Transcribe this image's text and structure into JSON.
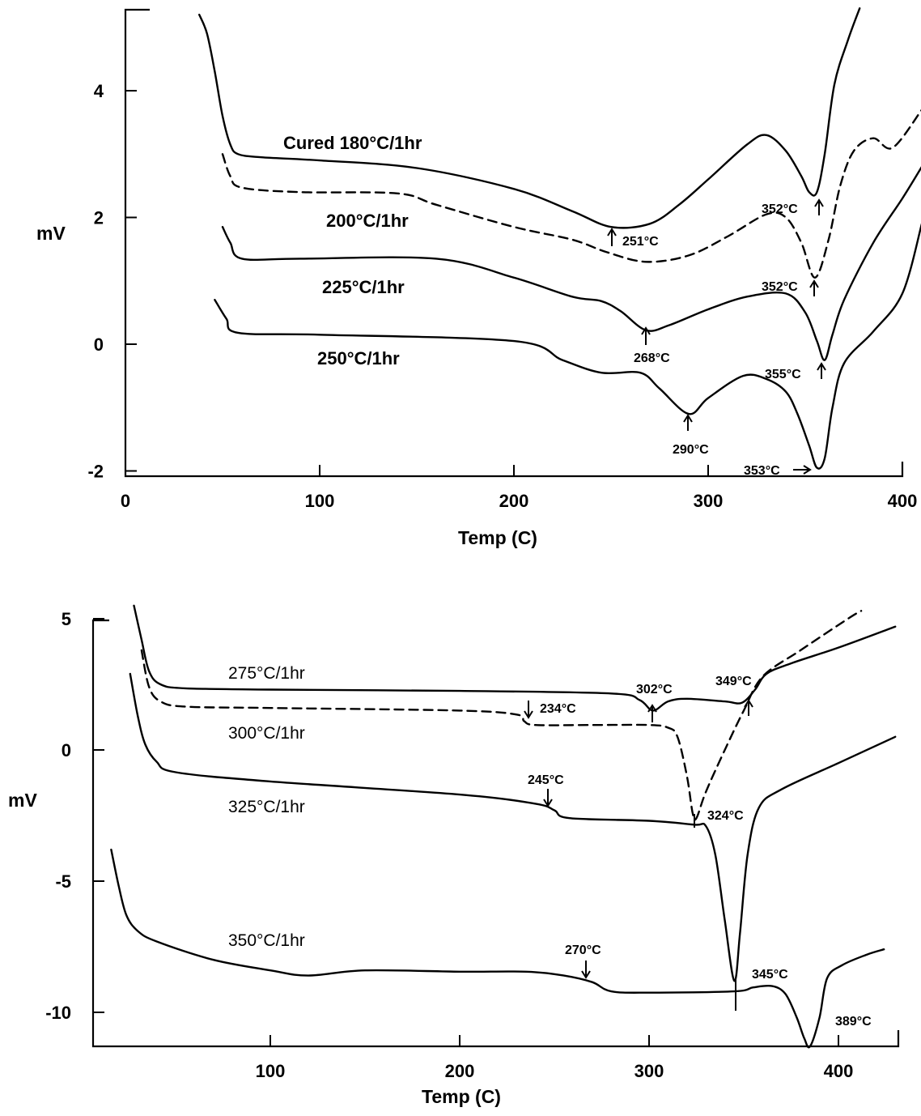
{
  "chart_data": [
    {
      "type": "line",
      "title": "",
      "xlabel": "Temp (C)",
      "ylabel": "mV",
      "xlim": [
        0,
        410
      ],
      "ylim": [
        -2.1,
        5.4
      ],
      "xticks": [
        0,
        100,
        200,
        300,
        400
      ],
      "yticks": [
        -2,
        0,
        2,
        4
      ],
      "grid": false,
      "series": [
        {
          "name": "Cured 180°C/1hr",
          "style": "solid",
          "points": [
            [
              38,
              5.2
            ],
            [
              42,
              4.9
            ],
            [
              46,
              4.3
            ],
            [
              50,
              3.6
            ],
            [
              54,
              3.15
            ],
            [
              58,
              3.0
            ],
            [
              70,
              2.95
            ],
            [
              100,
              2.9
            ],
            [
              150,
              2.78
            ],
            [
              200,
              2.45
            ],
            [
              230,
              2.1
            ],
            [
              250,
              1.85
            ],
            [
              270,
              1.9
            ],
            [
              285,
              2.2
            ],
            [
              300,
              2.6
            ],
            [
              320,
              3.15
            ],
            [
              330,
              3.3
            ],
            [
              340,
              3.05
            ],
            [
              348,
              2.65
            ],
            [
              352,
              2.4
            ],
            [
              356,
              2.4
            ],
            [
              360,
              3.0
            ],
            [
              365,
              4.1
            ],
            [
              372,
              4.8
            ],
            [
              378,
              5.3
            ]
          ]
        },
        {
          "name": "200°C/1hr",
          "style": "dashed",
          "points": [
            [
              50,
              3.0
            ],
            [
              54,
              2.65
            ],
            [
              60,
              2.47
            ],
            [
              90,
              2.4
            ],
            [
              140,
              2.38
            ],
            [
              160,
              2.2
            ],
            [
              200,
              1.85
            ],
            [
              230,
              1.65
            ],
            [
              248,
              1.45
            ],
            [
              268,
              1.3
            ],
            [
              290,
              1.4
            ],
            [
              310,
              1.7
            ],
            [
              330,
              2.05
            ],
            [
              340,
              2.0
            ],
            [
              348,
              1.6
            ],
            [
              355,
              1.05
            ],
            [
              362,
              1.65
            ],
            [
              368,
              2.5
            ],
            [
              375,
              3.05
            ],
            [
              385,
              3.25
            ],
            [
              395,
              3.1
            ],
            [
              410,
              3.7
            ]
          ]
        },
        {
          "name": "225°C/1hr",
          "style": "solid",
          "points": [
            [
              50,
              1.85
            ],
            [
              54,
              1.6
            ],
            [
              60,
              1.35
            ],
            [
              90,
              1.35
            ],
            [
              160,
              1.35
            ],
            [
              200,
              1.05
            ],
            [
              230,
              0.75
            ],
            [
              245,
              0.68
            ],
            [
              255,
              0.52
            ],
            [
              268,
              0.22
            ],
            [
              280,
              0.3
            ],
            [
              300,
              0.55
            ],
            [
              320,
              0.75
            ],
            [
              340,
              0.8
            ],
            [
              350,
              0.5
            ],
            [
              356,
              0.05
            ],
            [
              360,
              -0.25
            ],
            [
              364,
              0.15
            ],
            [
              370,
              0.7
            ],
            [
              385,
              1.6
            ],
            [
              400,
              2.3
            ],
            [
              410,
              2.8
            ]
          ]
        },
        {
          "name": "250°C/1hr",
          "style": "solid",
          "points": [
            [
              46,
              0.7
            ],
            [
              52,
              0.4
            ],
            [
              58,
              0.18
            ],
            [
              100,
              0.15
            ],
            [
              200,
              0.05
            ],
            [
              225,
              -0.25
            ],
            [
              245,
              -0.45
            ],
            [
              265,
              -0.45
            ],
            [
              275,
              -0.7
            ],
            [
              290,
              -1.1
            ],
            [
              300,
              -0.85
            ],
            [
              318,
              -0.5
            ],
            [
              330,
              -0.55
            ],
            [
              340,
              -0.75
            ],
            [
              346,
              -1.1
            ],
            [
              352,
              -1.6
            ],
            [
              356,
              -1.95
            ],
            [
              360,
              -1.8
            ],
            [
              364,
              -1.0
            ],
            [
              370,
              -0.3
            ],
            [
              385,
              0.2
            ],
            [
              400,
              0.8
            ],
            [
              410,
              1.9
            ]
          ]
        }
      ],
      "annotations": [
        {
          "text": "251°C",
          "x": 251,
          "y": 1.85
        },
        {
          "text": "352°C",
          "x": 352,
          "y": 2.4
        },
        {
          "text": "268°C",
          "x": 268,
          "y": 0.22
        },
        {
          "text": "352°C",
          "x": 355,
          "y": 1.05
        },
        {
          "text": "355°C",
          "x": 360,
          "y": -0.25
        },
        {
          "text": "290°C",
          "x": 290,
          "y": -1.1
        },
        {
          "text": "353°C",
          "x": 356,
          "y": -1.95
        }
      ]
    },
    {
      "type": "line",
      "title": "",
      "xlabel": "Temp (C)",
      "ylabel": "mV",
      "xlim": [
        0,
        430
      ],
      "ylim": [
        -11.3,
        5.6
      ],
      "xticks": [
        100,
        200,
        300,
        400
      ],
      "yticks": [
        -10,
        -5,
        0,
        5
      ],
      "grid": false,
      "series": [
        {
          "name": "275°C/1hr",
          "style": "solid",
          "points": [
            [
              28,
              5.5
            ],
            [
              32,
              4.2
            ],
            [
              36,
              3.0
            ],
            [
              42,
              2.5
            ],
            [
              55,
              2.35
            ],
            [
              100,
              2.3
            ],
            [
              200,
              2.25
            ],
            [
              280,
              2.15
            ],
            [
              295,
              1.9
            ],
            [
              302,
              1.5
            ],
            [
              310,
              1.85
            ],
            [
              320,
              1.95
            ],
            [
              340,
              1.85
            ],
            [
              349,
              1.8
            ],
            [
              356,
              2.3
            ],
            [
              362,
              2.9
            ],
            [
              375,
              3.3
            ],
            [
              400,
              3.9
            ],
            [
              430,
              4.7
            ]
          ]
        },
        {
          "name": "300°C/1hr",
          "style": "dashed",
          "points": [
            [
              32,
              3.8
            ],
            [
              36,
              2.4
            ],
            [
              42,
              1.85
            ],
            [
              55,
              1.65
            ],
            [
              100,
              1.6
            ],
            [
              200,
              1.5
            ],
            [
              230,
              1.35
            ],
            [
              234,
              1.1
            ],
            [
              240,
              0.95
            ],
            [
              270,
              0.95
            ],
            [
              300,
              0.95
            ],
            [
              310,
              0.85
            ],
            [
              315,
              0.5
            ],
            [
              320,
              -1.0
            ],
            [
              323,
              -2.4
            ],
            [
              325,
              -2.6
            ],
            [
              330,
              -1.6
            ],
            [
              340,
              0.0
            ],
            [
              350,
              1.5
            ],
            [
              360,
              2.8
            ],
            [
              380,
              3.8
            ],
            [
              405,
              5.0
            ],
            [
              412,
              5.3
            ]
          ]
        },
        {
          "name": "325°C/1hr",
          "style": "solid",
          "points": [
            [
              26,
              2.9
            ],
            [
              30,
              1.3
            ],
            [
              34,
              0.2
            ],
            [
              40,
              -0.45
            ],
            [
              50,
              -0.85
            ],
            [
              100,
              -1.2
            ],
            [
              200,
              -1.7
            ],
            [
              240,
              -2.05
            ],
            [
              250,
              -2.3
            ],
            [
              258,
              -2.6
            ],
            [
              300,
              -2.7
            ],
            [
              324,
              -2.85
            ],
            [
              330,
              -2.9
            ],
            [
              335,
              -4.0
            ],
            [
              340,
              -6.5
            ],
            [
              345,
              -8.8
            ],
            [
              348,
              -7.0
            ],
            [
              352,
              -4.0
            ],
            [
              358,
              -2.2
            ],
            [
              370,
              -1.5
            ],
            [
              400,
              -0.5
            ],
            [
              430,
              0.5
            ]
          ]
        },
        {
          "name": "350°C/1hr",
          "style": "solid",
          "points": [
            [
              16,
              -3.8
            ],
            [
              20,
              -5.2
            ],
            [
              24,
              -6.3
            ],
            [
              30,
              -6.9
            ],
            [
              40,
              -7.3
            ],
            [
              70,
              -8.0
            ],
            [
              100,
              -8.4
            ],
            [
              120,
              -8.6
            ],
            [
              150,
              -8.4
            ],
            [
              200,
              -8.45
            ],
            [
              235,
              -8.45
            ],
            [
              255,
              -8.6
            ],
            [
              270,
              -8.85
            ],
            [
              280,
              -9.2
            ],
            [
              300,
              -9.25
            ],
            [
              345,
              -9.2
            ],
            [
              355,
              -9.05
            ],
            [
              365,
              -9.0
            ],
            [
              372,
              -9.3
            ],
            [
              378,
              -10.2
            ],
            [
              382,
              -11.0
            ],
            [
              385,
              -11.3
            ],
            [
              390,
              -10.2
            ],
            [
              394,
              -8.7
            ],
            [
              402,
              -8.2
            ],
            [
              415,
              -7.8
            ],
            [
              424,
              -7.6
            ]
          ]
        }
      ],
      "annotations": [
        {
          "text": "234°C",
          "x": 234,
          "y": 1.1,
          "dir": "down"
        },
        {
          "text": "302°C",
          "x": 302,
          "y": 1.5,
          "dir": "up"
        },
        {
          "text": "349°C",
          "x": 349,
          "y": 1.8,
          "dir": "up"
        },
        {
          "text": "245°C",
          "x": 245,
          "y": -2.15,
          "dir": "down"
        },
        {
          "text": "324°C",
          "x": 324,
          "y": -2.85,
          "dir": "tick"
        },
        {
          "text": "270°C",
          "x": 270,
          "y": -8.85,
          "dir": "down"
        },
        {
          "text": "345°C",
          "x": 345,
          "y": -9.2,
          "dir": "tick"
        },
        {
          "text": "389°C",
          "x": 389,
          "y": -11.0,
          "dir": "none"
        }
      ]
    }
  ]
}
